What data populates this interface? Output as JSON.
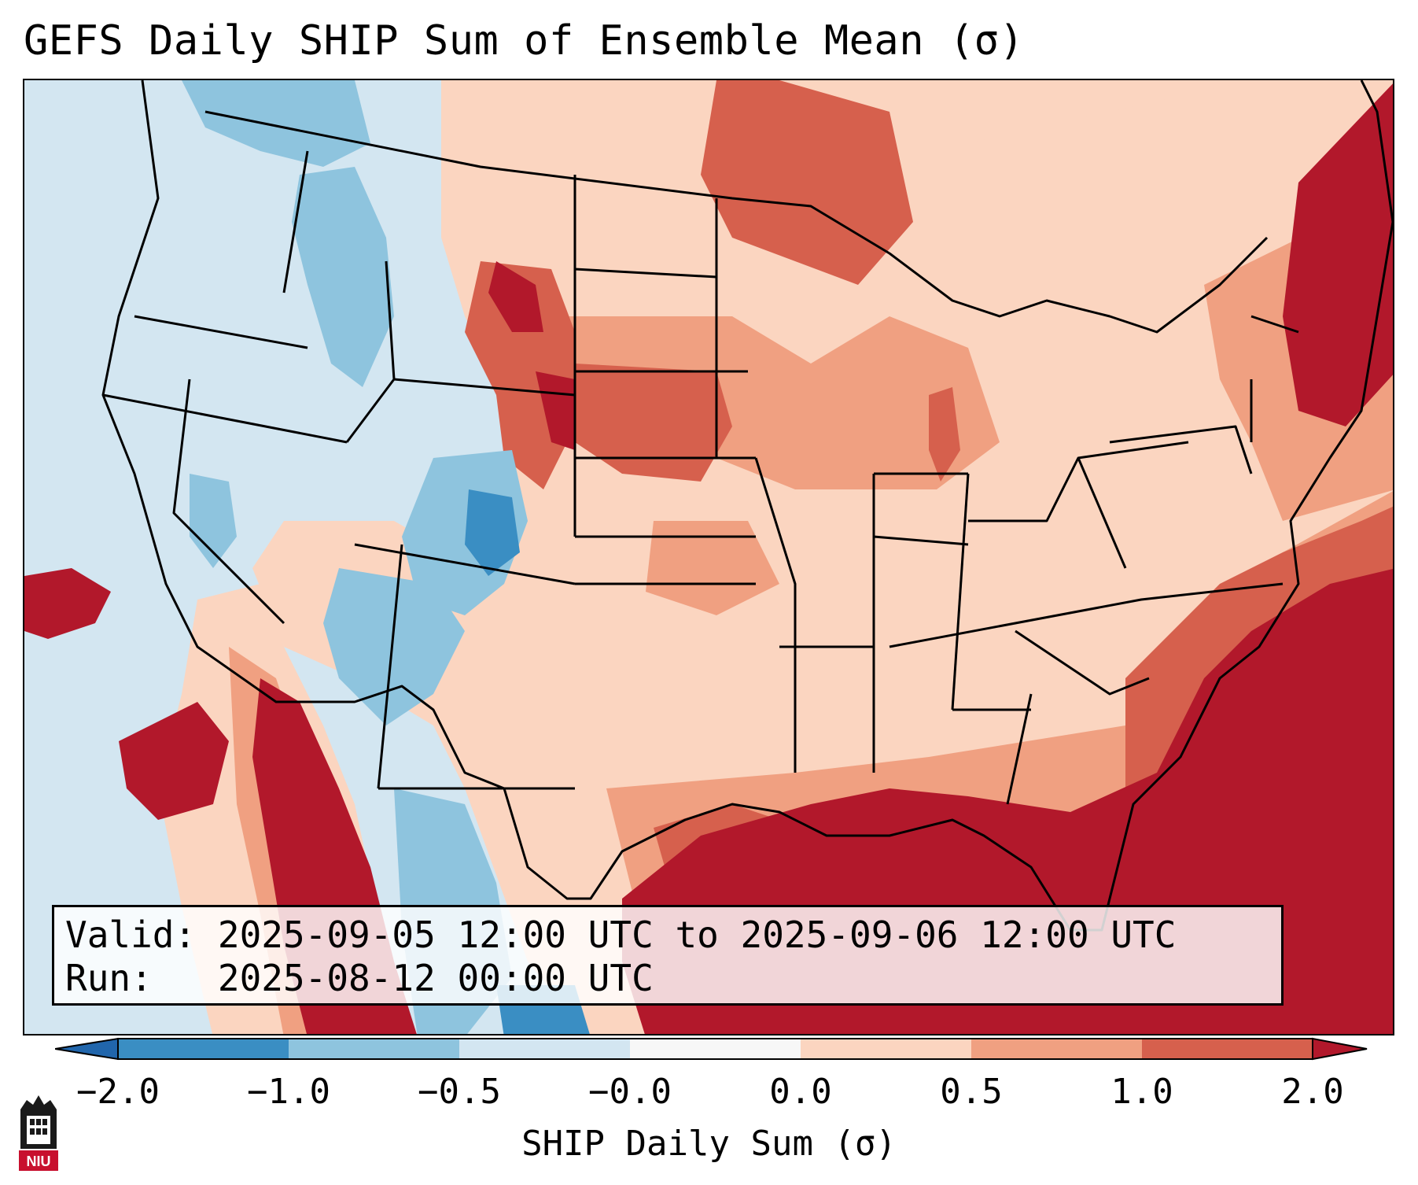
{
  "title": "GEFS Daily SHIP Sum of Ensemble Mean (σ)",
  "info": {
    "valid_label": "Valid:",
    "valid_value": "2025-09-05 12:00 UTC to 2025-09-06 12:00 UTC",
    "run_label": "Run:",
    "run_value": "2025-08-12 00:00 UTC"
  },
  "colorbar": {
    "label": "SHIP Daily Sum (σ)",
    "ticks": [
      "−2.0",
      "−1.0",
      "−0.5",
      "−0.0",
      "0.0",
      "0.5",
      "1.0",
      "2.0"
    ],
    "colors": [
      "#3a8ec3",
      "#8ec4de",
      "#d3e6f1",
      "#f7f7f7",
      "#fbd5c0",
      "#f0a081",
      "#d6604d",
      "#b2182b"
    ]
  },
  "logo": {
    "text": "NIU"
  },
  "map": {
    "region": "Contiguous United States",
    "colors": {
      "strong_neg": "#3a8ec3",
      "mod_neg": "#8ec4de",
      "weak_neg": "#d3e6f1",
      "weak_pos": "#fbd5c0",
      "mod_pos": "#f0a081",
      "strong_pos": "#d6604d",
      "extreme_pos": "#b2182b"
    }
  }
}
